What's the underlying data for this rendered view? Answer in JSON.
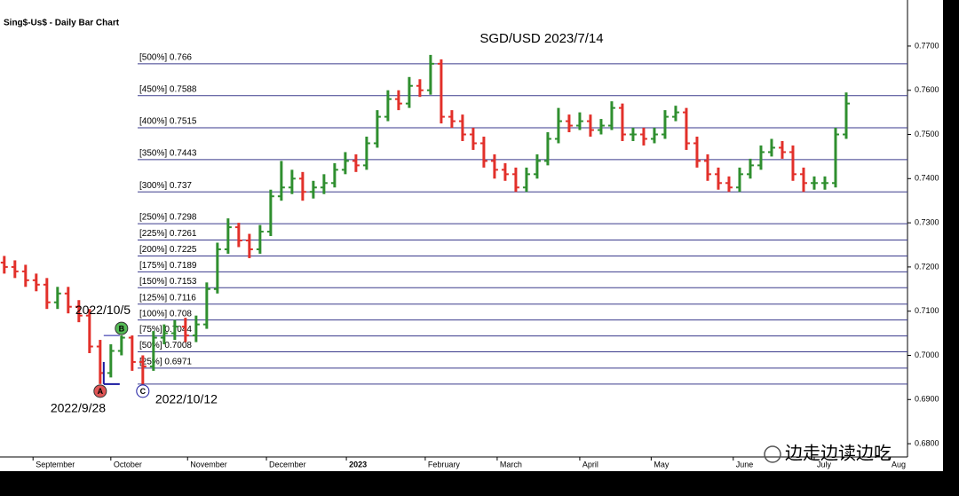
{
  "header": "Sing$-Us$ - Daily Bar Chart",
  "chart_data": {
    "type": "ohlc",
    "title": "SGD/USD 2023/7/14",
    "up_color": "#2f8f2f",
    "down_color": "#e2302a",
    "fib_color": "#3a3a8c",
    "ylim": [
      0.677,
      0.7734
    ],
    "yticks": [
      {
        "value": 0.68,
        "label": "0.6800"
      },
      {
        "value": 0.69,
        "label": "0.6900"
      },
      {
        "value": 0.7,
        "label": "0.7000"
      },
      {
        "value": 0.71,
        "label": "0.7100"
      },
      {
        "value": 0.72,
        "label": "0.7200"
      },
      {
        "value": 0.73,
        "label": "0.7300"
      },
      {
        "value": 0.74,
        "label": "0.7400"
      },
      {
        "value": 0.75,
        "label": "0.7500"
      },
      {
        "value": 0.76,
        "label": "0.7600"
      },
      {
        "value": 0.77,
        "label": "0.7700"
      }
    ],
    "xlim": [
      -0.4,
      84.75
    ],
    "xticks": [
      {
        "value": 2.7,
        "label": "September"
      },
      {
        "value": 10,
        "label": "October"
      },
      {
        "value": 17.2,
        "label": "November"
      },
      {
        "value": 24.6,
        "label": "December"
      },
      {
        "value": 32.1,
        "label": "2023"
      },
      {
        "value": 39.5,
        "label": "February"
      },
      {
        "value": 46.25,
        "label": "March"
      },
      {
        "value": 54,
        "label": "April"
      },
      {
        "value": 60.7,
        "label": "May"
      },
      {
        "value": 68.4,
        "label": "June"
      },
      {
        "value": 76,
        "label": "July"
      },
      {
        "value": 83,
        "label": "Aug"
      }
    ],
    "open": [
      0.721,
      0.72,
      0.719,
      0.717,
      0.716,
      0.712,
      0.714,
      0.711,
      0.709,
      0.702,
      0.696,
      0.701,
      0.704,
      0.6985,
      0.6975,
      0.704,
      0.705,
      0.7065,
      0.7045,
      0.707,
      0.715,
      0.724,
      0.729,
      0.726,
      0.724,
      0.728,
      0.736,
      0.738,
      0.74,
      0.737,
      0.738,
      0.739,
      0.742,
      0.744,
      0.743,
      0.748,
      0.754,
      0.758,
      0.757,
      0.761,
      0.76,
      0.766,
      0.754,
      0.753,
      0.75,
      0.748,
      0.744,
      0.742,
      0.741,
      0.738,
      0.741,
      0.744,
      0.749,
      0.753,
      0.752,
      0.753,
      0.751,
      0.752,
      0.756,
      0.75,
      0.75,
      0.749,
      0.75,
      0.754,
      0.755,
      0.748,
      0.744,
      0.741,
      0.739,
      0.738,
      0.741,
      0.743,
      0.746,
      0.747,
      0.746,
      0.741,
      0.739,
      0.739,
      0.739,
      0.75
    ],
    "high": [
      0.7225,
      0.7215,
      0.7205,
      0.7185,
      0.7175,
      0.7155,
      0.7155,
      0.7125,
      0.7105,
      0.7035,
      0.7025,
      0.7045,
      0.7045,
      0.7,
      0.7055,
      0.707,
      0.708,
      0.7085,
      0.709,
      0.7165,
      0.7255,
      0.731,
      0.73,
      0.7275,
      0.7295,
      0.7375,
      0.744,
      0.742,
      0.7415,
      0.7395,
      0.741,
      0.7435,
      0.746,
      0.7455,
      0.7495,
      0.7555,
      0.76,
      0.76,
      0.763,
      0.7625,
      0.768,
      0.767,
      0.7555,
      0.7545,
      0.7515,
      0.7495,
      0.7455,
      0.7435,
      0.7425,
      0.7425,
      0.7455,
      0.7505,
      0.756,
      0.7545,
      0.755,
      0.7545,
      0.7535,
      0.7575,
      0.757,
      0.7515,
      0.7515,
      0.7515,
      0.7555,
      0.7565,
      0.756,
      0.7495,
      0.7455,
      0.7425,
      0.7405,
      0.7425,
      0.7445,
      0.7475,
      0.749,
      0.7485,
      0.7475,
      0.7425,
      0.7405,
      0.7405,
      0.7515,
      0.7595
    ],
    "low": [
      0.7185,
      0.7175,
      0.7155,
      0.7145,
      0.7105,
      0.7105,
      0.7095,
      0.7075,
      0.7005,
      0.6935,
      0.695,
      0.7,
      0.6965,
      0.6935,
      0.6965,
      0.7025,
      0.7035,
      0.703,
      0.703,
      0.706,
      0.714,
      0.723,
      0.7245,
      0.722,
      0.723,
      0.727,
      0.735,
      0.7365,
      0.735,
      0.7355,
      0.7365,
      0.738,
      0.741,
      0.7415,
      0.742,
      0.747,
      0.753,
      0.7555,
      0.756,
      0.7585,
      0.759,
      0.7525,
      0.7515,
      0.7485,
      0.7465,
      0.7425,
      0.74,
      0.7395,
      0.737,
      0.737,
      0.74,
      0.743,
      0.748,
      0.7505,
      0.751,
      0.7495,
      0.75,
      0.751,
      0.7485,
      0.7485,
      0.7475,
      0.748,
      0.749,
      0.753,
      0.7465,
      0.7425,
      0.7395,
      0.7375,
      0.737,
      0.737,
      0.74,
      0.742,
      0.745,
      0.7445,
      0.7395,
      0.737,
      0.7375,
      0.7375,
      0.738,
      0.749
    ],
    "close": [
      0.72,
      0.719,
      0.717,
      0.716,
      0.712,
      0.714,
      0.711,
      0.709,
      0.702,
      0.696,
      0.701,
      0.704,
      0.6985,
      0.6975,
      0.704,
      0.705,
      0.7065,
      0.7045,
      0.707,
      0.715,
      0.724,
      0.729,
      0.726,
      0.724,
      0.728,
      0.736,
      0.738,
      0.74,
      0.737,
      0.738,
      0.739,
      0.742,
      0.744,
      0.743,
      0.748,
      0.754,
      0.758,
      0.757,
      0.761,
      0.76,
      0.766,
      0.754,
      0.753,
      0.75,
      0.748,
      0.744,
      0.742,
      0.741,
      0.738,
      0.741,
      0.744,
      0.749,
      0.753,
      0.752,
      0.753,
      0.751,
      0.752,
      0.756,
      0.75,
      0.75,
      0.749,
      0.75,
      0.754,
      0.755,
      0.748,
      0.744,
      0.741,
      0.739,
      0.738,
      0.741,
      0.743,
      0.746,
      0.747,
      0.746,
      0.741,
      0.739,
      0.739,
      0.739,
      0.75,
      0.757
    ],
    "fib_levels": [
      {
        "label": "[500%] 0.766",
        "value": 0.766
      },
      {
        "label": "[450%] 0.7588",
        "value": 0.7588
      },
      {
        "label": "[400%] 0.7515",
        "value": 0.7515
      },
      {
        "label": "[350%] 0.7443",
        "value": 0.7443
      },
      {
        "label": "[300%] 0.737",
        "value": 0.737
      },
      {
        "label": "[250%] 0.7298",
        "value": 0.7298
      },
      {
        "label": "[225%] 0.7261",
        "value": 0.7261
      },
      {
        "label": "[200%] 0.7225",
        "value": 0.7225
      },
      {
        "label": "[175%] 0.7189",
        "value": 0.7189
      },
      {
        "label": "[150%] 0.7153",
        "value": 0.7153
      },
      {
        "label": "[125%] 0.7116",
        "value": 0.7116
      },
      {
        "label": "[100%] 0.708",
        "value": 0.708
      },
      {
        "label": "[75%] 0.7044",
        "value": 0.7044
      },
      {
        "label": "[50%] 0.7008",
        "value": 0.7008
      },
      {
        "label": "[25%] 0.6971",
        "value": 0.6971
      },
      {
        "label": null,
        "value": 0.6935
      }
    ],
    "annotations": [
      {
        "point": "A",
        "text": "2022/9/28"
      },
      {
        "point": "B",
        "text": "2022/10/5"
      },
      {
        "point": "C",
        "text": "2022/10/12"
      }
    ]
  },
  "watermark": "边走边读边吃"
}
